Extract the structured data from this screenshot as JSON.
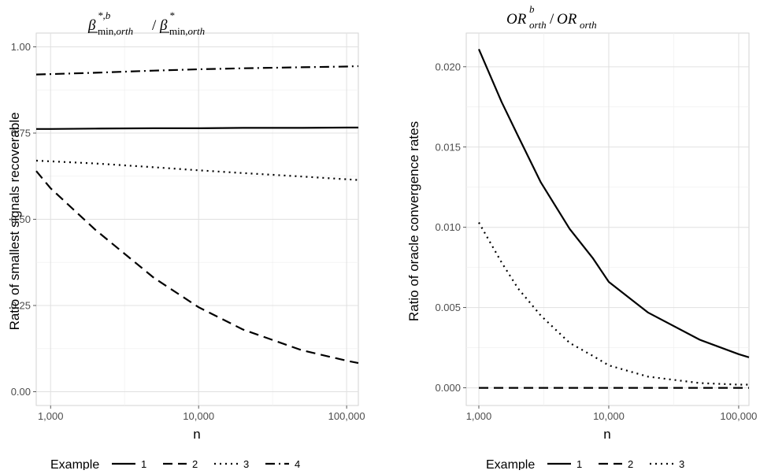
{
  "chart_data": [
    {
      "type": "line",
      "title": "β*,b min,orth / β* min,orth",
      "xlabel": "n",
      "ylabel": "Ratio of smallest signals recoverable",
      "x_scale": "log10",
      "xlim": [
        800,
        120000
      ],
      "ylim": [
        -0.04,
        1.04
      ],
      "x_ticks": [
        1000,
        10000,
        100000
      ],
      "x_tick_labels": [
        "1,000",
        "10,000",
        "100,000"
      ],
      "y_ticks": [
        0,
        0.25,
        0.5,
        0.75,
        1.0
      ],
      "y_tick_labels": [
        "0.00",
        "0.25",
        "0.50",
        "0.75",
        "1.00"
      ],
      "grid": true,
      "legend_title": "Example",
      "legend_position": "bottom",
      "x": [
        800,
        1000,
        2000,
        5000,
        10000,
        20000,
        50000,
        100000,
        120000
      ],
      "series": [
        {
          "name": "1",
          "linetype": "solid",
          "values": [
            0.762,
            0.762,
            0.763,
            0.764,
            0.764,
            0.765,
            0.765,
            0.766,
            0.766
          ]
        },
        {
          "name": "2",
          "linetype": "dashed",
          "values": [
            0.64,
            0.59,
            0.47,
            0.33,
            0.245,
            0.18,
            0.12,
            0.09,
            0.083
          ]
        },
        {
          "name": "3",
          "linetype": "dotted",
          "values": [
            0.67,
            0.668,
            0.662,
            0.651,
            0.642,
            0.634,
            0.624,
            0.616,
            0.614
          ]
        },
        {
          "name": "4",
          "linetype": "dotdash",
          "values": [
            0.92,
            0.921,
            0.925,
            0.931,
            0.935,
            0.938,
            0.941,
            0.943,
            0.944
          ]
        }
      ]
    },
    {
      "type": "line",
      "title": "OR b orth / OR orth",
      "xlabel": "n",
      "ylabel": "Ratio of oracle convergence rates",
      "x_scale": "log10",
      "xlim": [
        800,
        120000
      ],
      "ylim": [
        -0.0011,
        0.0221
      ],
      "x_ticks": [
        1000,
        10000,
        100000
      ],
      "x_tick_labels": [
        "1,000",
        "10,000",
        "100,000"
      ],
      "y_ticks": [
        0,
        0.005,
        0.01,
        0.015,
        0.02
      ],
      "y_tick_labels": [
        "0.000",
        "0.005",
        "0.010",
        "0.015",
        "0.020"
      ],
      "grid": true,
      "legend_title": "Example",
      "legend_position": "bottom",
      "x": [
        1000,
        1500,
        2000,
        3000,
        5000,
        7500,
        10000,
        20000,
        50000,
        100000,
        120000
      ],
      "series": [
        {
          "name": "1",
          "linetype": "solid",
          "values": [
            0.0211,
            0.0178,
            0.0157,
            0.0128,
            0.0099,
            0.0081,
            0.0066,
            0.0047,
            0.003,
            0.0021,
            0.0019
          ]
        },
        {
          "name": "2",
          "linetype": "dashed",
          "values": [
            0,
            0,
            0,
            0,
            0,
            0,
            0,
            0,
            0,
            0,
            0
          ]
        },
        {
          "name": "3",
          "linetype": "dotted",
          "values": [
            0.0103,
            0.0078,
            0.0062,
            0.0045,
            0.0028,
            0.002,
            0.0014,
            0.0007,
            0.0003,
            0.0002,
            0.0002
          ]
        }
      ]
    }
  ]
}
